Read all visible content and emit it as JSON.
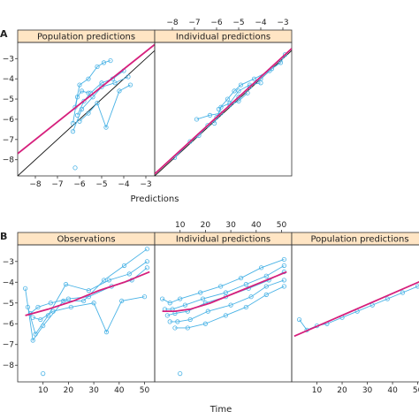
{
  "colors": {
    "strip_bg": "#ffe5c4",
    "data": "#4ab3e6",
    "smooth": "#d61f7c",
    "identity": "#111111",
    "frame": "#333333"
  },
  "panel_letters": [
    "A",
    "B"
  ],
  "chart_data": [
    {
      "type": "scatter",
      "id": "A",
      "xlabel": "Predictions",
      "ylabel": "",
      "xlim": [
        -8.8,
        -2.6
      ],
      "ylim": [
        -8.8,
        -2.2
      ],
      "xticks_bottom": [
        -8,
        -7,
        -6,
        -5,
        -4,
        -3
      ],
      "xticks_top": [
        -8,
        -7,
        -6,
        -5,
        -4,
        -3
      ],
      "yticks": [
        -8,
        -7,
        -6,
        -5,
        -4,
        -3
      ],
      "grid": false,
      "identity_line": true,
      "panels": [
        {
          "title": "Population predictions",
          "series": [
            {
              "points": [
                [
                  -6.3,
                  -6.2
                ],
                [
                  -6.1,
                  -4.9
                ],
                [
                  -5.9,
                  -4.6
                ],
                [
                  -5.6,
                  -4.7
                ]
              ]
            },
            {
              "points": [
                [
                  -6.2,
                  -5.4
                ],
                [
                  -6.0,
                  -4.3
                ],
                [
                  -5.6,
                  -4.0
                ],
                [
                  -5.2,
                  -3.4
                ],
                [
                  -4.9,
                  -3.2
                ],
                [
                  -4.6,
                  -3.1
                ]
              ]
            },
            {
              "points": [
                [
                  -6.1,
                  -5.8
                ],
                [
                  -5.8,
                  -5.1
                ],
                [
                  -5.5,
                  -4.7
                ],
                [
                  -5.0,
                  -4.2
                ],
                [
                  -4.5,
                  -4.0
                ],
                [
                  -4.0,
                  -3.6
                ]
              ]
            },
            {
              "points": [
                [
                  -6.3,
                  -6.6
                ],
                [
                  -5.9,
                  -5.5
                ],
                [
                  -5.4,
                  -4.9
                ],
                [
                  -5.0,
                  -4.4
                ],
                [
                  -4.4,
                  -4.2
                ],
                [
                  -3.8,
                  -3.9
                ]
              ]
            },
            {
              "points": [
                [
                  -6.0,
                  -6.1
                ],
                [
                  -5.6,
                  -5.7
                ],
                [
                  -5.2,
                  -5.2
                ],
                [
                  -4.8,
                  -6.4
                ],
                [
                  -4.2,
                  -4.6
                ],
                [
                  -3.7,
                  -4.3
                ]
              ]
            },
            {
              "points": [
                [
                  -6.2,
                  -8.4
                ]
              ]
            }
          ],
          "smooth": [
            [
              -8.8,
              -7.7
            ],
            [
              -2.6,
              -2.3
            ]
          ]
        },
        {
          "title": "Individual predictions",
          "series": [
            {
              "points": [
                [
                  -7.9,
                  -7.9
                ],
                [
                  -7.2,
                  -7.1
                ],
                [
                  -6.8,
                  -6.8
                ],
                [
                  -6.4,
                  -6.3
                ],
                [
                  -6.0,
                  -5.9
                ]
              ]
            },
            {
              "points": [
                [
                  -6.9,
                  -6.0
                ],
                [
                  -6.3,
                  -5.8
                ],
                [
                  -5.8,
                  -5.7
                ],
                [
                  -5.4,
                  -5.3
                ],
                [
                  -5.0,
                  -5.1
                ],
                [
                  -4.6,
                  -4.7
                ]
              ]
            },
            {
              "points": [
                [
                  -6.1,
                  -6.2
                ],
                [
                  -5.8,
                  -5.4
                ],
                [
                  -5.4,
                  -5.2
                ],
                [
                  -5.0,
                  -4.6
                ],
                [
                  -4.5,
                  -4.3
                ],
                [
                  -4.0,
                  -4.2
                ]
              ]
            },
            {
              "points": [
                [
                  -5.9,
                  -5.5
                ],
                [
                  -5.5,
                  -5.0
                ],
                [
                  -5.2,
                  -4.6
                ],
                [
                  -4.9,
                  -4.3
                ],
                [
                  -4.3,
                  -4.0
                ],
                [
                  -3.6,
                  -3.6
                ]
              ]
            },
            {
              "points": [
                [
                  -5.0,
                  -4.9
                ],
                [
                  -4.5,
                  -4.4
                ],
                [
                  -4.0,
                  -4.0
                ],
                [
                  -3.5,
                  -3.5
                ],
                [
                  -3.1,
                  -3.2
                ],
                [
                  -2.9,
                  -2.8
                ]
              ]
            }
          ],
          "smooth": [
            [
              -8.8,
              -8.7
            ],
            [
              -2.6,
              -2.5
            ]
          ]
        }
      ]
    },
    {
      "type": "line",
      "id": "B",
      "xlabel": "Time",
      "ylabel": "",
      "xlim": [
        0,
        54
      ],
      "ylim": [
        -8.8,
        -2.2
      ],
      "xticks_bottom": [
        10,
        20,
        30,
        40,
        50
      ],
      "xticks_top": [
        10,
        20,
        30,
        40,
        50
      ],
      "yticks": [
        -8,
        -7,
        -6,
        -5,
        -4,
        -3
      ],
      "grid": false,
      "panels": [
        {
          "title": "Observations",
          "series": [
            {
              "points": [
                [
                  3,
                  -4.3
                ],
                [
                  6,
                  -6.8
                ],
                [
                  10,
                  -6.1
                ],
                [
                  18,
                  -4.9
                ],
                [
                  26,
                  -4.9
                ],
                [
                  34,
                  -3.9
                ],
                [
                  42,
                  -3.2
                ],
                [
                  51,
                  -2.4
                ]
              ]
            },
            {
              "points": [
                [
                  4,
                  -5.2
                ],
                [
                  7,
                  -6.5
                ],
                [
                  12,
                  -5.6
                ],
                [
                  19,
                  -4.1
                ],
                [
                  28,
                  -4.4
                ],
                [
                  36,
                  -3.9
                ],
                [
                  44,
                  -3.6
                ],
                [
                  51,
                  -3.0
                ]
              ]
            },
            {
              "points": [
                [
                  5,
                  -5.5
                ],
                [
                  8,
                  -5.2
                ],
                [
                  13,
                  -5.0
                ],
                [
                  20,
                  -4.8
                ],
                [
                  28,
                  -4.7
                ],
                [
                  37,
                  -4.2
                ],
                [
                  45,
                  -3.9
                ],
                [
                  51,
                  -3.3
                ]
              ]
            },
            {
              "points": [
                [
                  6,
                  -5.7
                ],
                [
                  9,
                  -5.8
                ],
                [
                  14,
                  -5.4
                ],
                [
                  21,
                  -5.2
                ],
                [
                  30,
                  -5.0
                ],
                [
                  35,
                  -6.4
                ],
                [
                  41,
                  -4.9
                ],
                [
                  50,
                  -4.7
                ]
              ]
            },
            {
              "points": [
                [
                  10,
                  -8.4
                ]
              ]
            }
          ],
          "smooth": [
            [
              3,
              -5.6
            ],
            [
              12,
              -5.3
            ],
            [
              22,
              -4.9
            ],
            [
              32,
              -4.4
            ],
            [
              42,
              -4.0
            ],
            [
              52,
              -3.5
            ]
          ]
        },
        {
          "title": "Individual predictions",
          "series": [
            {
              "points": [
                [
                  3,
                  -4.8
                ],
                [
                  6,
                  -5.0
                ],
                [
                  10,
                  -4.8
                ],
                [
                  18,
                  -4.5
                ],
                [
                  26,
                  -4.2
                ],
                [
                  34,
                  -3.8
                ],
                [
                  42,
                  -3.3
                ],
                [
                  51,
                  -2.9
                ]
              ]
            },
            {
              "points": [
                [
                  4,
                  -5.3
                ],
                [
                  7,
                  -5.3
                ],
                [
                  12,
                  -5.1
                ],
                [
                  19,
                  -4.8
                ],
                [
                  28,
                  -4.5
                ],
                [
                  36,
                  -4.1
                ],
                [
                  44,
                  -3.7
                ],
                [
                  51,
                  -3.2
                ]
              ]
            },
            {
              "points": [
                [
                  5,
                  -5.6
                ],
                [
                  8,
                  -5.5
                ],
                [
                  13,
                  -5.4
                ],
                [
                  20,
                  -5.0
                ],
                [
                  28,
                  -4.7
                ],
                [
                  37,
                  -4.3
                ],
                [
                  45,
                  -3.9
                ],
                [
                  51,
                  -3.5
                ]
              ]
            },
            {
              "points": [
                [
                  6,
                  -5.9
                ],
                [
                  9,
                  -5.9
                ],
                [
                  14,
                  -5.8
                ],
                [
                  21,
                  -5.4
                ],
                [
                  30,
                  -5.1
                ],
                [
                  38,
                  -4.7
                ],
                [
                  44,
                  -4.2
                ],
                [
                  51,
                  -3.9
                ]
              ]
            },
            {
              "points": [
                [
                  8,
                  -6.2
                ],
                [
                  13,
                  -6.2
                ],
                [
                  20,
                  -6.0
                ],
                [
                  28,
                  -5.6
                ],
                [
                  36,
                  -5.2
                ],
                [
                  44,
                  -4.6
                ],
                [
                  51,
                  -4.2
                ]
              ]
            },
            {
              "points": [
                [
                  10,
                  -8.4
                ]
              ]
            }
          ],
          "smooth": [
            [
              3,
              -5.4
            ],
            [
              8,
              -5.4
            ],
            [
              14,
              -5.3
            ],
            [
              22,
              -5.0
            ],
            [
              32,
              -4.5
            ],
            [
              42,
              -4.0
            ],
            [
              52,
              -3.5
            ]
          ]
        },
        {
          "title": "Population predictions",
          "series": [
            {
              "points": [
                [
                  3,
                  -5.8
                ],
                [
                  6,
                  -6.3
                ],
                [
                  10,
                  -6.1
                ],
                [
                  14,
                  -6.0
                ],
                [
                  20,
                  -5.7
                ],
                [
                  26,
                  -5.4
                ],
                [
                  32,
                  -5.1
                ],
                [
                  38,
                  -4.8
                ],
                [
                  44,
                  -4.5
                ],
                [
                  50,
                  -4.2
                ],
                [
                  54,
                  -3.9
                ]
              ]
            }
          ],
          "smooth": [
            [
              1,
              -6.6
            ],
            [
              54,
              -3.8
            ]
          ]
        }
      ]
    }
  ]
}
